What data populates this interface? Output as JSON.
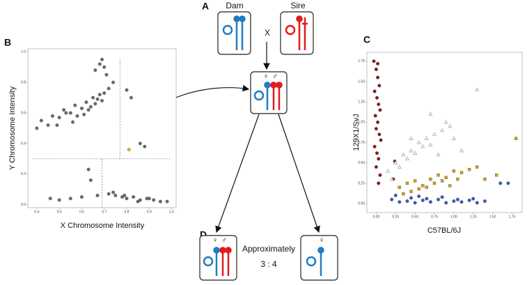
{
  "diagram": {
    "panel_labels": [
      "A",
      "B",
      "C",
      "D"
    ],
    "dam": "Dam",
    "sire": "Sire",
    "cross": "X",
    "female": "♀",
    "male": "♂",
    "ratio_text": "Approximately",
    "ratio": "3 : 4"
  },
  "chart_data": [
    {
      "type": "scatter",
      "x_label": "X Chromosome Intensity",
      "y_label": "Y Chromosome Intensity",
      "xlim": [
        0.36,
        1.02
      ],
      "ylim": [
        -0.02,
        1.02
      ],
      "xticks": [
        0.4,
        0.5,
        0.6,
        0.7,
        0.8,
        0.9,
        {
          "value": 1,
          "label": "1.0"
        }
      ],
      "yticks": [
        {
          "value": 0,
          "label": "0.0"
        },
        0.2,
        0.4,
        0.6,
        0.8,
        {
          "value": 1,
          "label": "1.0"
        }
      ],
      "reference_lines": [
        {
          "x": [
            0.77,
            0.77
          ],
          "y": [
            0.3,
            0.96
          ]
        },
        {
          "x": [
            0.38,
            1.0
          ],
          "y": [
            0.3,
            0.3
          ]
        },
        {
          "x": [
            0.69,
            0.69
          ],
          "y": [
            -0.02,
            0.3
          ]
        }
      ],
      "series": [
        {
          "color": "#6b6b6b",
          "marker": "circle",
          "x": [
            0.4,
            0.42,
            0.45,
            0.47,
            0.5,
            0.52,
            0.55,
            0.57,
            0.58,
            0.6,
            0.62,
            0.63,
            0.65,
            0.66,
            0.68,
            0.7,
            0.72,
            0.74,
            0.56,
            0.61,
            0.64,
            0.67,
            0.69,
            0.53,
            0.49,
            0.66,
            0.68,
            0.7,
            0.71,
            0.69,
            0.8,
            0.82,
            0.86,
            0.88,
            0.63,
            0.64,
            0.46,
            0.5,
            0.55,
            0.6,
            0.67,
            0.72,
            0.75,
            0.78,
            0.8,
            0.83,
            0.86,
            0.89,
            0.92,
            0.95,
            0.98,
            0.74,
            0.79,
            0.85,
            0.9
          ],
          "values": [
            0.5,
            0.55,
            0.52,
            0.58,
            0.57,
            0.62,
            0.6,
            0.65,
            0.58,
            0.63,
            0.67,
            0.62,
            0.7,
            0.66,
            0.72,
            0.73,
            0.76,
            0.8,
            0.54,
            0.59,
            0.64,
            0.69,
            0.68,
            0.6,
            0.52,
            0.88,
            0.92,
            0.9,
            0.85,
            0.95,
            0.75,
            0.7,
            0.4,
            0.38,
            0.23,
            0.16,
            0.04,
            0.03,
            0.04,
            0.05,
            0.06,
            0.07,
            0.06,
            0.05,
            0.04,
            0.05,
            0.03,
            0.04,
            0.03,
            0.02,
            0.02,
            0.08,
            0.06,
            0.02,
            0.04
          ]
        },
        {
          "color": "#e6b800",
          "marker": "circle",
          "x": [
            0.81
          ],
          "values": [
            0.36
          ]
        }
      ]
    },
    {
      "type": "scatter",
      "x_label": "C57BL/6J",
      "y_label": "129X1/SvJ",
      "xlim": [
        -0.12,
        1.88
      ],
      "ylim": [
        -0.11,
        1.86
      ],
      "xticks": [
        {
          "value": 0,
          "label": "0.00"
        },
        {
          "value": 0.25,
          "label": "0.25"
        },
        {
          "value": 0.5,
          "label": "0.50"
        },
        {
          "value": 0.75,
          "label": "0.75"
        },
        {
          "value": 1,
          "label": "1.00"
        },
        {
          "value": 1.25,
          "label": "1.25"
        },
        {
          "value": 1.5,
          "label": "1.50"
        },
        {
          "value": 1.75,
          "label": "1.75"
        }
      ],
      "yticks": [
        {
          "value": 0,
          "label": "0.00"
        },
        {
          "value": 0.25,
          "label": "0.25"
        },
        {
          "value": 0.5,
          "label": "0.50"
        },
        {
          "value": 0.75,
          "label": "0.75"
        },
        {
          "value": 1,
          "label": "1.00"
        },
        {
          "value": 1.25,
          "label": "1.25"
        },
        {
          "value": 1.5,
          "label": "1.50"
        },
        {
          "value": 1.75,
          "label": "1.75"
        }
      ],
      "series": [
        {
          "color": "#8b1a1a",
          "marker": "circle",
          "x": [
            -0.03,
            0.0,
            0.02,
            0.04,
            -0.02,
            0.01,
            0.03,
            0.05,
            -0.01,
            0.02,
            0.0,
            0.04,
            0.06,
            -0.02,
            0.01,
            0.03,
            0.0,
            0.05,
            0.22,
            0.24,
            0.03,
            0.02
          ],
          "values": [
            1.75,
            1.65,
            1.55,
            1.45,
            1.38,
            1.3,
            1.22,
            1.15,
            1.08,
            1.0,
            0.92,
            0.85,
            0.78,
            0.7,
            0.62,
            0.55,
            0.45,
            0.35,
            0.3,
            0.52,
            0.25,
            1.72
          ]
        },
        {
          "color": "#aaaaaa",
          "marker": "triangle",
          "x": [
            0.15,
            0.25,
            0.35,
            0.45,
            0.55,
            0.65,
            0.75,
            0.85,
            0.95,
            0.3,
            0.4,
            0.5,
            0.6,
            0.7,
            0.8,
            0.9,
            1.0,
            1.1,
            1.3,
            0.2,
            0.45,
            0.7
          ],
          "values": [
            0.4,
            0.5,
            0.6,
            0.65,
            0.75,
            0.8,
            0.85,
            0.9,
            0.95,
            0.45,
            0.55,
            0.62,
            0.7,
            0.72,
            0.6,
            1.0,
            0.8,
            0.65,
            1.4,
            0.3,
            0.8,
            1.1
          ]
        },
        {
          "color": "#d4a017",
          "marker": "square",
          "x": [
            0.3,
            0.4,
            0.5,
            0.6,
            0.7,
            0.8,
            0.9,
            1.0,
            1.1,
            1.2,
            1.3,
            0.45,
            0.55,
            0.65,
            0.75,
            0.85,
            0.95,
            1.05,
            1.4,
            1.55,
            1.8,
            0.35
          ],
          "values": [
            0.2,
            0.25,
            0.28,
            0.22,
            0.3,
            0.35,
            0.32,
            0.4,
            0.38,
            0.42,
            0.45,
            0.15,
            0.18,
            0.2,
            0.25,
            0.28,
            0.22,
            0.3,
            0.3,
            0.35,
            0.8,
            0.12
          ]
        },
        {
          "color": "#3a5bbf",
          "marker": "circle",
          "x": [
            0.2,
            0.3,
            0.4,
            0.5,
            0.6,
            0.7,
            0.8,
            0.9,
            1.0,
            1.1,
            1.2,
            1.3,
            1.4,
            0.45,
            0.65,
            0.85,
            1.05,
            1.25,
            1.6,
            1.7,
            0.25,
            0.55
          ],
          "values": [
            0.05,
            0.02,
            0.03,
            0.01,
            0.04,
            0.02,
            0.05,
            0.01,
            0.03,
            0.02,
            0.04,
            0.01,
            0.03,
            0.07,
            0.06,
            0.08,
            0.05,
            0.06,
            0.25,
            0.25,
            0.1,
            0.09
          ]
        }
      ]
    }
  ]
}
